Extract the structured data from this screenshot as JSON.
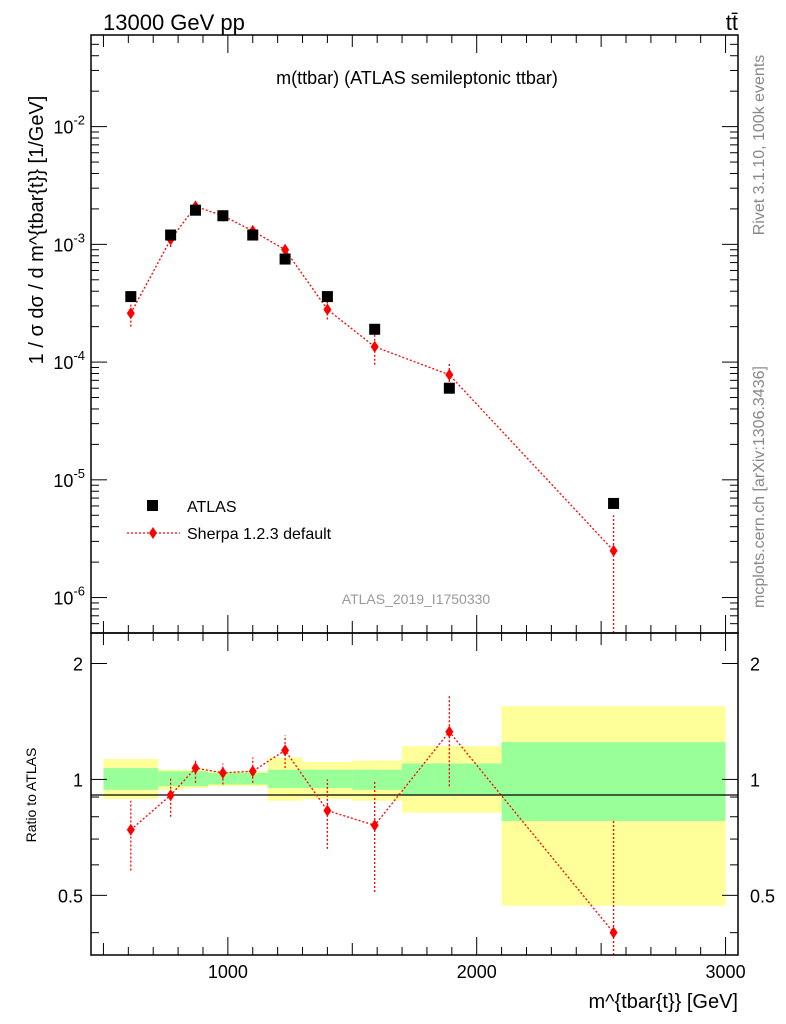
{
  "header": {
    "left": "13000 GeV pp",
    "right": "tt̄"
  },
  "side": {
    "rivet": "Rivet 3.1.10,  100k events",
    "mcplots": "mcplots.cern.ch [arXiv:1306.3436]"
  },
  "main_panel": {
    "title": "m(ttbar) (ATLAS semileptonic ttbar)",
    "ylabel": "1 / σ dσ / d m^{tbar{t}} [1/GeV]",
    "watermark": "ATLAS_2019_I1750330",
    "y_ticks": [
      "10^{-6}",
      "10^{-5}",
      "10^{-4}",
      "10^{-3}",
      "10^{-2}"
    ],
    "legend": [
      {
        "label": "ATLAS"
      },
      {
        "label": "Sherpa 1.2.3 default"
      }
    ]
  },
  "ratio_panel": {
    "ylabel": "Ratio to ATLAS",
    "y_ticks": [
      "0.5",
      "1",
      "2"
    ]
  },
  "x_axis": {
    "label": "m^{tbar{t}} [GeV]",
    "ticks": [
      "1000",
      "2000",
      "3000"
    ]
  },
  "colors": {
    "data": "#000000",
    "mc": "#ff0000",
    "band_inner": "#99ff99",
    "band_outer": "#ffff99"
  },
  "chart_data": {
    "type": "scatter",
    "x_range": [
      450,
      3050
    ],
    "main_ylim": [
      5e-07,
      0.06
    ],
    "main_yscale": "log",
    "ratio_ylim": [
      0.35,
      2.4
    ],
    "ratio_yscale": "log",
    "bins": [
      {
        "lo": 500,
        "hi": 720,
        "data": 0.00036,
        "mc": 0.00026,
        "mc_err": [
          0.0002,
          0.00032
        ],
        "ratio": 0.74,
        "ratio_err": [
          0.58,
          0.88
        ],
        "inner": [
          0.94,
          1.07
        ],
        "outer": [
          0.89,
          1.13
        ]
      },
      {
        "lo": 720,
        "hi": 820,
        "data": 0.0012,
        "mc": 0.0011,
        "mc_err": [
          0.00095,
          0.0013
        ],
        "ratio": 0.91,
        "ratio_err": [
          0.8,
          1.01
        ],
        "inner": [
          0.96,
          1.05
        ],
        "outer": [
          0.94,
          1.06
        ]
      },
      {
        "lo": 820,
        "hi": 920,
        "data": 0.00195,
        "mc": 0.0021,
        "mc_err": [
          0.0019,
          0.0023
        ],
        "ratio": 1.07,
        "ratio_err": [
          0.98,
          1.13
        ],
        "inner": [
          0.96,
          1.05
        ],
        "outer": [
          0.95,
          1.06
        ]
      },
      {
        "lo": 920,
        "hi": 1040,
        "data": 0.00175,
        "mc": 0.00175,
        "mc_err": [
          0.0016,
          0.0019
        ],
        "ratio": 1.04,
        "ratio_err": [
          0.97,
          1.1
        ],
        "inner": [
          0.97,
          1.04
        ],
        "outer": [
          0.96,
          1.05
        ]
      },
      {
        "lo": 1040,
        "hi": 1160,
        "data": 0.0012,
        "mc": 0.0013,
        "mc_err": [
          0.00115,
          0.00145
        ],
        "ratio": 1.05,
        "ratio_err": [
          0.98,
          1.14
        ],
        "inner": [
          0.97,
          1.04
        ],
        "outer": [
          0.96,
          1.05
        ]
      },
      {
        "lo": 1160,
        "hi": 1300,
        "data": 0.00075,
        "mc": 0.0009,
        "mc_err": [
          0.00078,
          0.001
        ],
        "ratio": 1.19,
        "ratio_err": [
          1.07,
          1.3
        ],
        "inner": [
          0.95,
          1.06
        ],
        "outer": [
          0.88,
          1.14
        ]
      },
      {
        "lo": 1300,
        "hi": 1500,
        "data": 0.00036,
        "mc": 0.00028,
        "mc_err": [
          0.00023,
          0.00033
        ],
        "ratio": 0.83,
        "ratio_err": [
          0.66,
          1.0
        ],
        "inner": [
          0.95,
          1.06
        ],
        "outer": [
          0.89,
          1.11
        ]
      },
      {
        "lo": 1500,
        "hi": 1700,
        "data": 0.00019,
        "mc": 0.000135,
        "mc_err": [
          9.5e-05,
          0.000175
        ],
        "ratio": 0.76,
        "ratio_err": [
          0.51,
          0.99
        ],
        "inner": [
          0.94,
          1.06
        ],
        "outer": [
          0.88,
          1.12
        ]
      },
      {
        "lo": 1700,
        "hi": 2100,
        "data": 6e-05,
        "mc": 7.8e-05,
        "mc_err": [
          5.8e-05,
          0.0001
        ],
        "ratio": 1.33,
        "ratio_err": [
          0.96,
          1.65
        ],
        "inner": [
          0.91,
          1.1
        ],
        "outer": [
          0.82,
          1.22
        ]
      },
      {
        "lo": 2100,
        "hi": 3000,
        "data": 6.3e-06,
        "mc": 2.5e-06,
        "mc_err": [
          1e-09,
          5e-06
        ],
        "ratio": 0.4,
        "ratio_err": [
          0.01,
          0.79
        ],
        "inner": [
          0.78,
          1.25
        ],
        "outer": [
          0.47,
          1.55
        ]
      }
    ],
    "x_centers": [
      610,
      770,
      870,
      980,
      1100,
      1230,
      1400,
      1590,
      1890,
      2550
    ]
  }
}
